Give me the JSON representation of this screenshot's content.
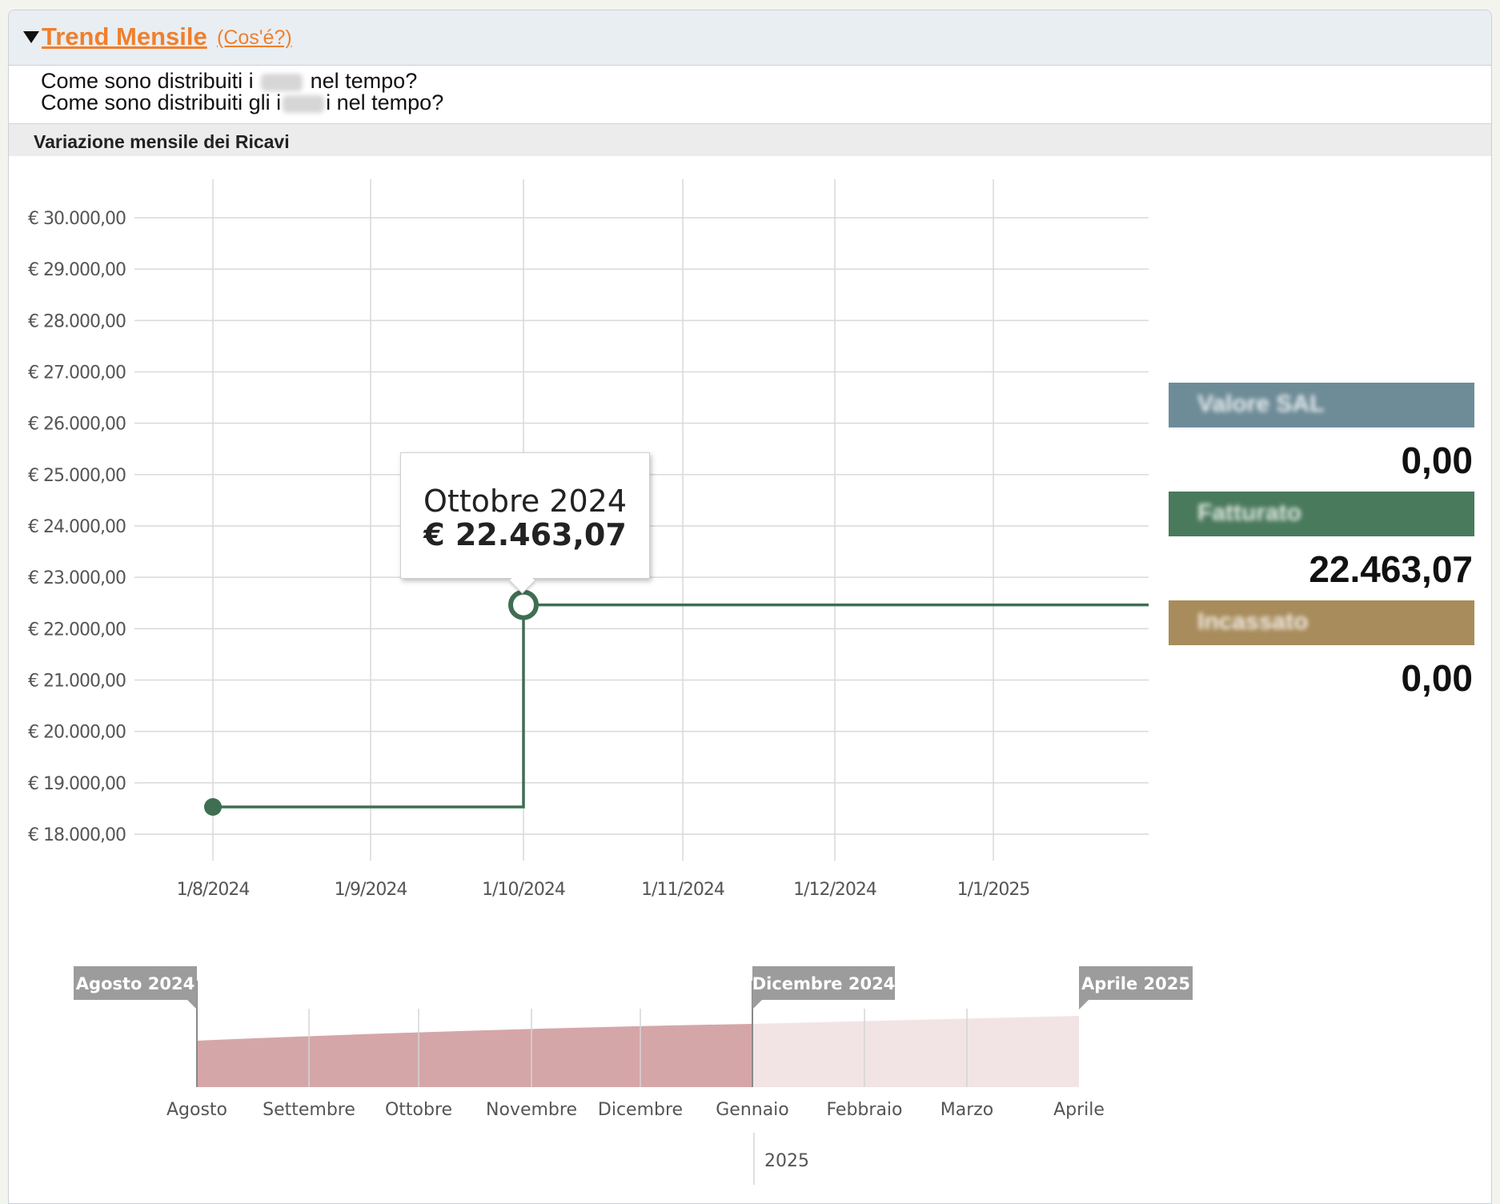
{
  "panel": {
    "title": "Trend Mensile",
    "help_link": "(Cos'é?)",
    "question_1_a": "Come sono distribuiti i ",
    "question_1_b": " nel tempo?",
    "question_2_a": "Come sono distribuiti gli i",
    "question_2_b": "i nel tempo?",
    "section_title": "Variazione mensile dei Ricavi"
  },
  "legend": {
    "items": [
      {
        "label": "Valore SAL",
        "value": "0,00",
        "color": "#6e8c98"
      },
      {
        "label": "Fatturato",
        "value": "22.463,07",
        "color": "#4a7a5c"
      },
      {
        "label": "Incassato",
        "value": "0,00",
        "color": "#a88c5c"
      }
    ]
  },
  "tooltip": {
    "title": "Ottobre 2024",
    "value": "€ 22.463,07"
  },
  "chart_data": {
    "type": "line",
    "step": true,
    "title": "Variazione mensile dei Ricavi",
    "y_ticks": [
      "€ 30.000,00",
      "€ 29.000,00",
      "€ 28.000,00",
      "€ 27.000,00",
      "€ 26.000,00",
      "€ 25.000,00",
      "€ 24.000,00",
      "€ 23.000,00",
      "€ 22.000,00",
      "€ 21.000,00",
      "€ 20.000,00",
      "€ 19.000,00",
      "€ 18.000,00"
    ],
    "ylim": [
      18000,
      30000
    ],
    "x_ticks": [
      "1/8/2024",
      "1/9/2024",
      "1/10/2024",
      "1/11/2024",
      "1/12/2024",
      "1/1/2025"
    ],
    "grid": true,
    "series": [
      {
        "name": "Fatturato",
        "color": "#3f6e52",
        "points": [
          {
            "x": "1/8/2024",
            "y": 18530
          },
          {
            "x": "1/10/2024",
            "y": 22463.07
          }
        ]
      }
    ]
  },
  "navigator": {
    "start_label": "Agosto 2024",
    "end_label": "Dicembre 2024",
    "max_label": "Aprile 2025",
    "months": [
      "Agosto",
      "Settembre",
      "Ottobre",
      "Novembre",
      "Dicembre",
      "Gennaio",
      "Febbraio",
      "Marzo",
      "Aprile"
    ],
    "year_label": "2025",
    "selected_color": "#d5a6a8",
    "unselected_color": "#f2e4e5"
  }
}
